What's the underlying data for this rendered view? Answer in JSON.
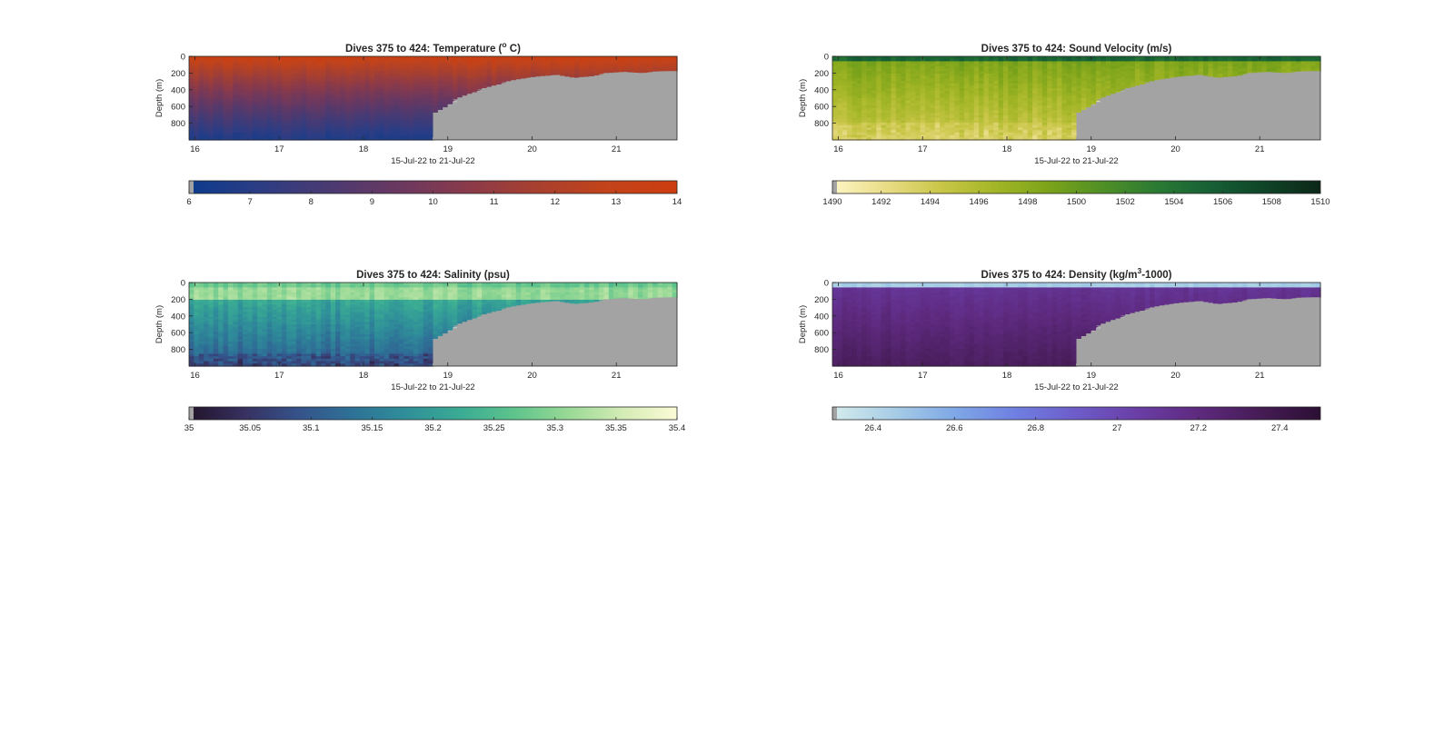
{
  "chart_data": [
    {
      "type": "heatmap",
      "variable": "temperature",
      "title_prefix": "Dives 375 to 424: Temperature (",
      "title_sup": "o",
      "title_suffix": " C)",
      "xlabel": "15-Jul-22 to 21-Jul-22",
      "ylabel": "Depth (m)",
      "xlim": [
        15.93,
        21.72
      ],
      "ylim": [
        0,
        1000
      ],
      "y_reversed": true,
      "x_ticks": [
        "16",
        "17",
        "18",
        "19",
        "20",
        "21"
      ],
      "y_ticks": [
        "0",
        "200",
        "400",
        "600",
        "800"
      ],
      "colorbar": {
        "range": [
          6,
          14
        ],
        "ticks": [
          "6",
          "7",
          "8",
          "9",
          "10",
          "11",
          "12",
          "13",
          "14"
        ],
        "colors": [
          "#0d3b8c",
          "#2c3d84",
          "#4a3a72",
          "#6a3860",
          "#8a3a4a",
          "#a8402f",
          "#c3431a",
          "#cc3d10"
        ]
      },
      "surface_value": 13.5,
      "deep_value": 6.6,
      "no_data_color": "#a3a3a3"
    },
    {
      "type": "heatmap",
      "variable": "sound_velocity",
      "title_prefix": "Dives 375 to 424: Sound Velocity (m/s)",
      "title_sup": "",
      "title_suffix": "",
      "xlabel": "15-Jul-22 to 21-Jul-22",
      "ylabel": "Depth (m)",
      "xlim": [
        15.93,
        21.72
      ],
      "ylim": [
        0,
        1000
      ],
      "y_reversed": true,
      "x_ticks": [
        "16",
        "17",
        "18",
        "19",
        "20",
        "21"
      ],
      "y_ticks": [
        "0",
        "200",
        "400",
        "600",
        "800"
      ],
      "colorbar": {
        "range": [
          1490,
          1510
        ],
        "ticks": [
          "1490",
          "1492",
          "1494",
          "1496",
          "1498",
          "1500",
          "1502",
          "1504",
          "1506",
          "1508",
          "1510"
        ],
        "colors": [
          "#fdf5c4",
          "#e9dc86",
          "#c9c648",
          "#a3b626",
          "#7ba31a",
          "#4f8f26",
          "#2a7a34",
          "#165f35",
          "#0f4327",
          "#0c2718"
        ]
      },
      "surface_value": 1505,
      "deep_value": 1494,
      "no_data_color": "#a3a3a3"
    },
    {
      "type": "heatmap",
      "variable": "salinity",
      "title_prefix": "Dives 375 to 424: Salinity (psu)",
      "title_sup": "",
      "title_suffix": "",
      "xlabel": "15-Jul-22 to 21-Jul-22",
      "ylabel": "Depth (m)",
      "xlim": [
        15.93,
        21.72
      ],
      "ylim": [
        0,
        1000
      ],
      "y_reversed": true,
      "x_ticks": [
        "16",
        "17",
        "18",
        "19",
        "20",
        "21"
      ],
      "y_ticks": [
        "0",
        "200",
        "400",
        "600",
        "800"
      ],
      "colorbar": {
        "range": [
          35,
          35.4
        ],
        "ticks": [
          "35",
          "35.05",
          "35.1",
          "35.15",
          "35.2",
          "35.25",
          "35.3",
          "35.35",
          "35.4"
        ],
        "colors": [
          "#22142b",
          "#37305f",
          "#35528a",
          "#2e7197",
          "#2f8f99",
          "#3aab94",
          "#5ec48c",
          "#99d996",
          "#d4ecb5",
          "#fcfbd6"
        ]
      },
      "surface_value": 35.32,
      "deep_value": 35.1,
      "no_data_color": "#a3a3a3"
    },
    {
      "type": "heatmap",
      "variable": "density",
      "title_prefix": "Dives 375 to 424: Density (kg/m",
      "title_sup": "3",
      "title_suffix": "-1000)",
      "xlabel": "15-Jul-22 to 21-Jul-22",
      "ylabel": "Depth (m)",
      "xlim": [
        15.93,
        21.72
      ],
      "ylim": [
        0,
        1000
      ],
      "y_reversed": true,
      "x_ticks": [
        "16",
        "17",
        "18",
        "19",
        "20",
        "21"
      ],
      "y_ticks": [
        "0",
        "200",
        "400",
        "600",
        "800"
      ],
      "colorbar": {
        "range": [
          26.3,
          27.5
        ],
        "ticks": [
          "26.4",
          "26.6",
          "26.8",
          "27",
          "27.2",
          "27.4"
        ],
        "tick_values": [
          26.4,
          26.6,
          26.8,
          27,
          27.2,
          27.4
        ],
        "colors": [
          "#d4ecec",
          "#a8cde6",
          "#7fa8e6",
          "#6f7fe2",
          "#6d5cc9",
          "#6a3ea6",
          "#5e2a7f",
          "#461c56",
          "#2c0f33"
        ]
      },
      "surface_value": 26.45,
      "deep_value": 27.33,
      "no_data_color": "#a3a3a3"
    }
  ]
}
